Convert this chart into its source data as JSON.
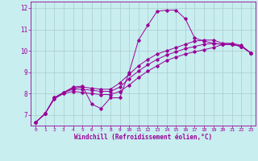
{
  "bg_color": "#c8eef0",
  "line_color": "#990099",
  "grid_color": "#aacccc",
  "xlabel": "Windchill (Refroidissement éolien,°C)",
  "xlabel_color": "#990099",
  "tick_color": "#990099",
  "xlim": [
    -0.5,
    23.5
  ],
  "ylim": [
    6.5,
    12.3
  ],
  "yticks": [
    7,
    8,
    9,
    10,
    11,
    12
  ],
  "xticks": [
    0,
    1,
    2,
    3,
    4,
    5,
    6,
    7,
    8,
    9,
    10,
    11,
    12,
    13,
    14,
    15,
    16,
    17,
    18,
    19,
    20,
    21,
    22,
    23
  ],
  "lines": [
    {
      "x": [
        0,
        1,
        2,
        3,
        4,
        5,
        6,
        7,
        8,
        9,
        10,
        11,
        12,
        13,
        14,
        15,
        16,
        17,
        18,
        19,
        20,
        21,
        22,
        23
      ],
      "y": [
        6.65,
        7.05,
        7.8,
        8.05,
        8.3,
        8.35,
        7.5,
        7.3,
        7.8,
        7.8,
        9.0,
        10.5,
        11.2,
        11.85,
        11.9,
        11.9,
        11.5,
        10.6,
        10.45,
        10.35,
        10.3,
        10.3,
        10.2,
        9.9
      ]
    },
    {
      "x": [
        0,
        1,
        2,
        3,
        4,
        5,
        6,
        7,
        8,
        9,
        10,
        11,
        12,
        13,
        14,
        15,
        16,
        17,
        18,
        19,
        20,
        21,
        22,
        23
      ],
      "y": [
        6.65,
        7.05,
        7.8,
        8.05,
        8.25,
        8.3,
        8.25,
        8.2,
        8.2,
        8.5,
        8.9,
        9.3,
        9.6,
        9.85,
        10.0,
        10.15,
        10.3,
        10.45,
        10.5,
        10.5,
        10.35,
        10.35,
        10.25,
        9.9
      ]
    },
    {
      "x": [
        0,
        1,
        2,
        3,
        4,
        5,
        6,
        7,
        8,
        9,
        10,
        11,
        12,
        13,
        14,
        15,
        16,
        17,
        18,
        19,
        20,
        21,
        22,
        23
      ],
      "y": [
        6.65,
        7.05,
        7.8,
        8.05,
        8.2,
        8.2,
        8.15,
        8.1,
        8.1,
        8.3,
        8.7,
        9.05,
        9.35,
        9.6,
        9.8,
        9.95,
        10.1,
        10.2,
        10.3,
        10.35,
        10.3,
        10.3,
        10.2,
        9.9
      ]
    },
    {
      "x": [
        0,
        1,
        2,
        3,
        4,
        5,
        6,
        7,
        8,
        9,
        10,
        11,
        12,
        13,
        14,
        15,
        16,
        17,
        18,
        19,
        20,
        21,
        22,
        23
      ],
      "y": [
        6.65,
        7.05,
        7.75,
        8.0,
        8.1,
        8.05,
        8.0,
        7.95,
        7.95,
        8.1,
        8.4,
        8.75,
        9.05,
        9.3,
        9.55,
        9.7,
        9.85,
        9.95,
        10.05,
        10.15,
        10.3,
        10.3,
        10.2,
        9.9
      ]
    }
  ]
}
